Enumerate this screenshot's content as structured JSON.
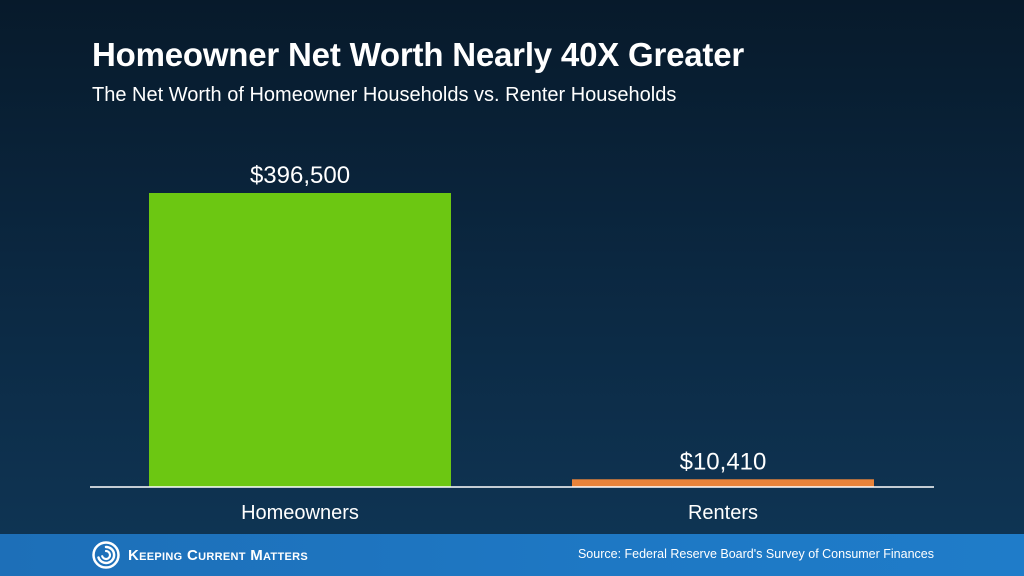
{
  "header": {
    "title": "Homeowner Net Worth Nearly 40X Greater",
    "subtitle": "The Net Worth of Homeowner Households vs. Renter Households"
  },
  "chart_data": {
    "type": "bar",
    "categories": [
      "Homeowners",
      "Renters"
    ],
    "values": [
      396500,
      10410
    ],
    "value_labels": [
      "$396,500",
      "$10,410"
    ],
    "colors": [
      "#6cc712",
      "#e8833a"
    ],
    "title": "Homeowner Net Worth Nearly 40X Greater",
    "subtitle": "The Net Worth of Homeowner Households vs. Renter Households",
    "ylim": [
      0,
      396500
    ],
    "grid": false,
    "legend": "none"
  },
  "footer": {
    "logo_text": "Keeping Current Matters",
    "logo_icon": "swirl-icon",
    "source": "Source: Federal Reserve Board's Survey of Consumer Finances"
  }
}
